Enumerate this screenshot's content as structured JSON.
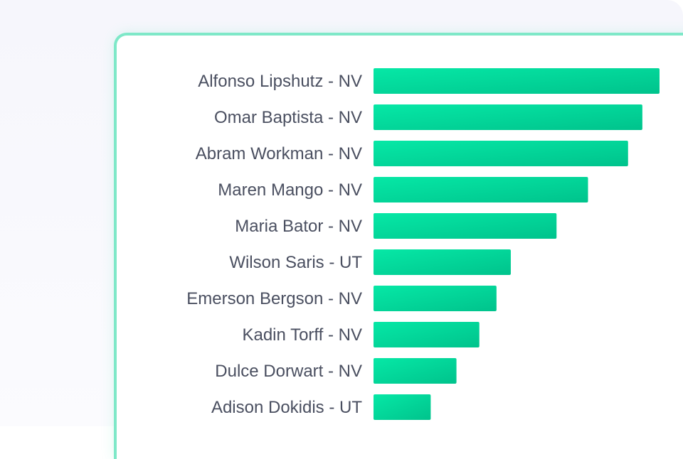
{
  "chart_data": {
    "type": "bar",
    "orientation": "horizontal",
    "title": "",
    "xlabel": "",
    "ylabel": "",
    "categories": [
      "Alfonso Lipshutz - NV",
      "Omar Baptista - NV",
      "Abram Workman - NV",
      "Maren Mango - NV",
      "Maria Bator - NV",
      "Wilson Saris - UT",
      "Emerson Bergson - NV",
      "Kadin Torff - NV",
      "Dulce Dorwart - NV",
      "Adison Dokidis - UT"
    ],
    "values": [
      100,
      94,
      89,
      75,
      64,
      48,
      43,
      37,
      29,
      20
    ],
    "xlim": [
      0,
      100
    ],
    "grid": false,
    "legend": "none"
  },
  "colors": {
    "bar_start": "#06e8a6",
    "bar_end": "#00c38c",
    "label": "#4a4f60",
    "card_border": "#7ee8c8"
  }
}
